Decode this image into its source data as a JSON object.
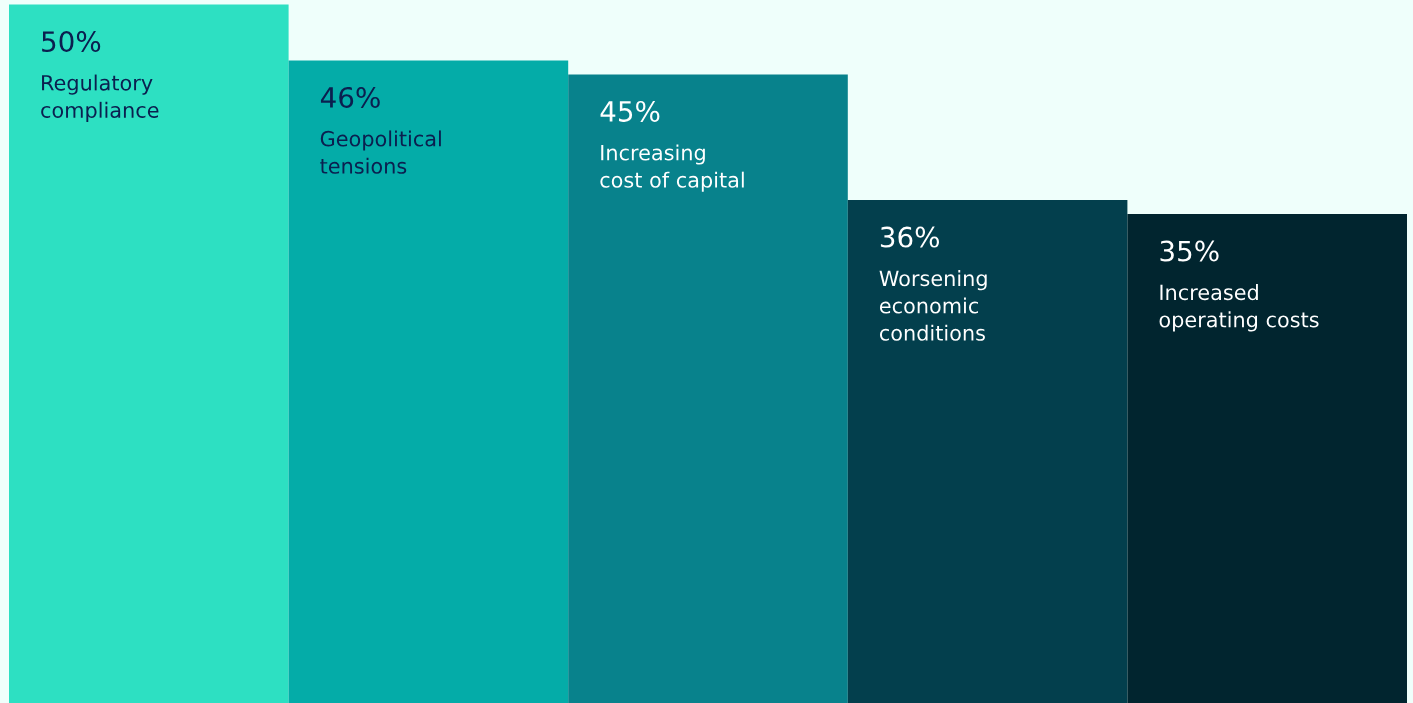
{
  "chart_data": {
    "type": "bar",
    "categories": [
      "Regulatory\ncompliance",
      "Geopolitical\ntensions",
      "Increasing\ncost of capital",
      "Worsening\neconomic\nconditions",
      "Increased\noperating costs"
    ],
    "values": [
      50,
      46,
      45,
      36,
      35
    ],
    "colors": [
      "#2de0c2",
      "#04aca8",
      "#08828c",
      "#033f4d",
      "#01252f"
    ],
    "value_labels": [
      "50%",
      "46%",
      "45%",
      "36%",
      "35%"
    ]
  }
}
